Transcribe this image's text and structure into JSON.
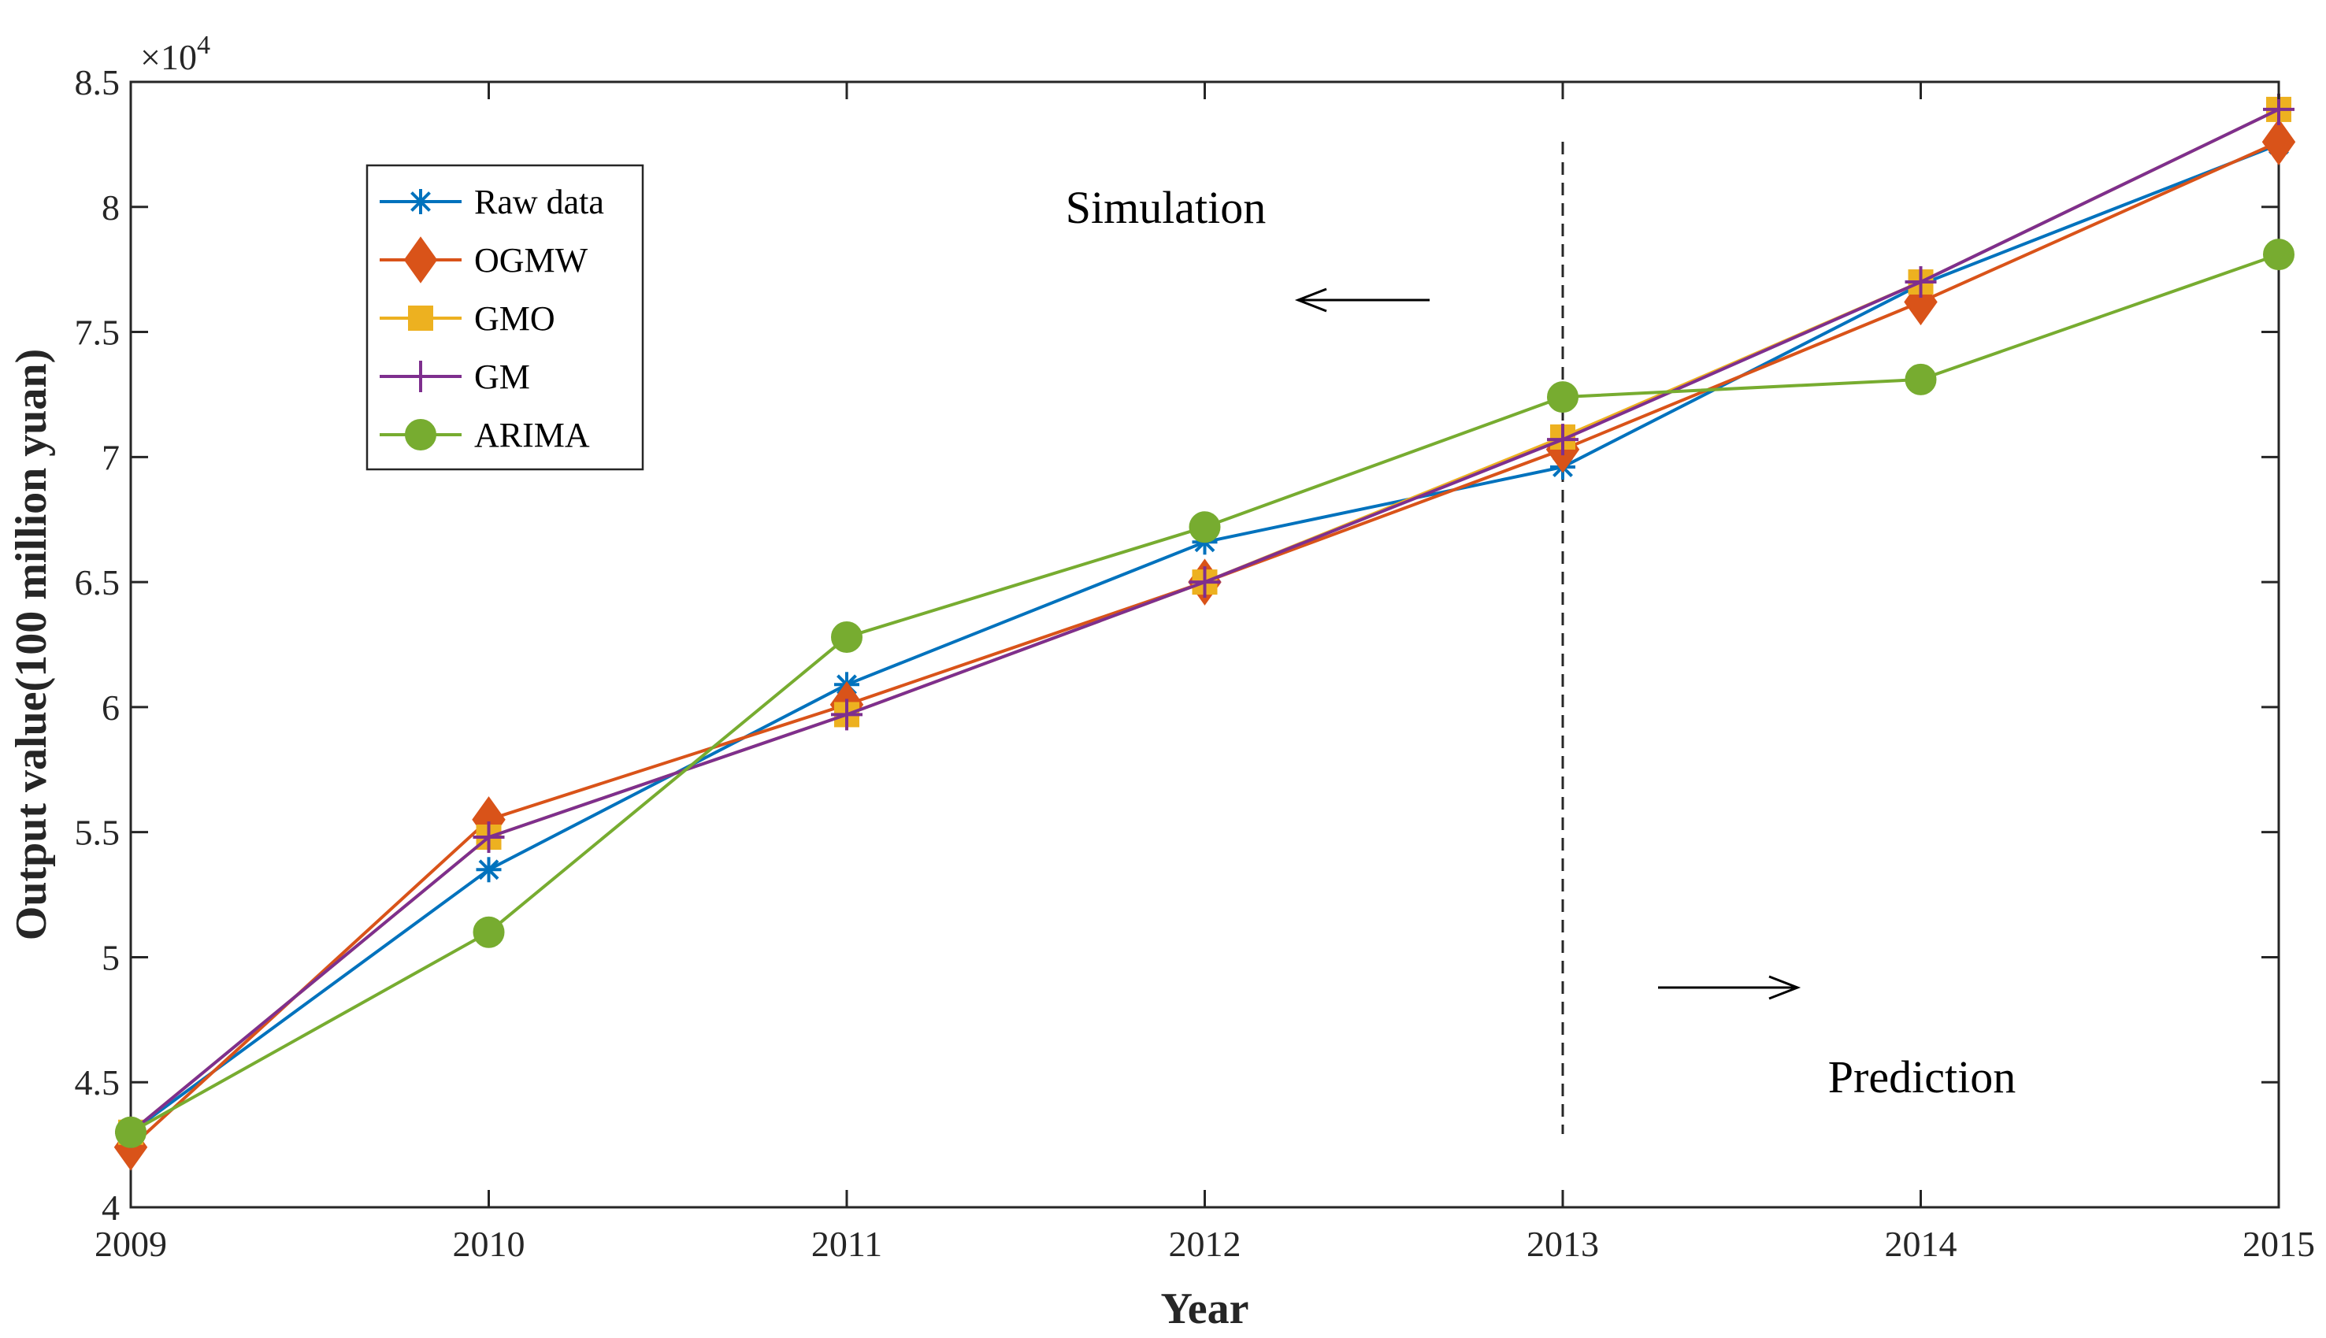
{
  "chart_data": {
    "type": "line",
    "title": "",
    "xlabel": "Year",
    "ylabel": "Output value(100 million yuan)",
    "x": [
      2009,
      2010,
      2011,
      2012,
      2013,
      2014,
      2015
    ],
    "x_tick_labels": [
      "2009",
      "2010",
      "2011",
      "2012",
      "2013",
      "2014",
      "2015"
    ],
    "xlim": [
      2009,
      2015
    ],
    "ylim": [
      4,
      8.5
    ],
    "y_ticks": [
      4,
      4.5,
      5,
      5.5,
      6,
      6.5,
      7,
      7.5,
      8,
      8.5
    ],
    "y_tick_labels": [
      "4",
      "4.5",
      "5",
      "5.5",
      "6",
      "6.5",
      "7",
      "7.5",
      "8",
      "8.5"
    ],
    "y_exponent": {
      "base": "×10",
      "power": "4"
    },
    "grid": false,
    "legend_position": "top-left",
    "series": [
      {
        "name": "Raw data",
        "color": "#0072BD",
        "marker": "asterisk",
        "values": [
          4.3,
          5.35,
          6.09,
          6.66,
          6.96,
          7.69,
          8.25
        ]
      },
      {
        "name": "OGMW",
        "color": "#D95319",
        "marker": "diamond",
        "values": [
          4.24,
          5.55,
          6.01,
          6.5,
          7.03,
          7.62,
          8.26
        ]
      },
      {
        "name": "GMO",
        "color": "#EDB120",
        "marker": "square",
        "values": [
          4.3,
          5.48,
          5.97,
          6.5,
          7.08,
          7.7,
          8.39
        ]
      },
      {
        "name": "GM",
        "color": "#7E2F8E",
        "marker": "plus",
        "values": [
          4.3,
          5.48,
          5.97,
          6.5,
          7.07,
          7.7,
          8.39
        ]
      },
      {
        "name": "ARIMA",
        "color": "#77AC30",
        "marker": "circle",
        "values": [
          4.3,
          5.1,
          6.28,
          6.72,
          7.24,
          7.31,
          7.81
        ]
      }
    ],
    "annotations": {
      "simulation": "Simulation",
      "prediction": "Prediction",
      "divider_x": 2013
    }
  }
}
